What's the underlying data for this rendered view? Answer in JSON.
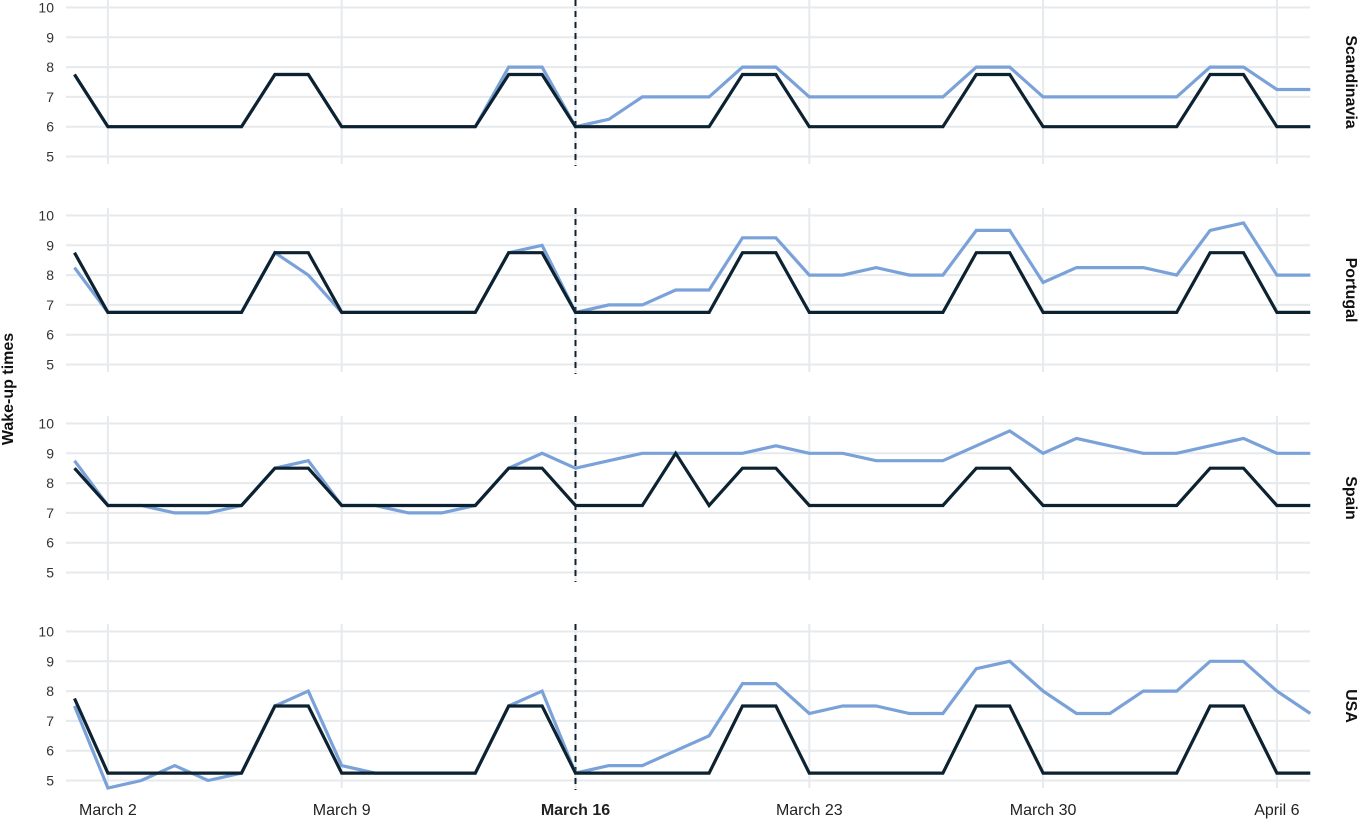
{
  "chart_data": {
    "type": "line",
    "ylabel": "Wake-up times",
    "x_ticks": [
      {
        "label": "March 2",
        "day": 2,
        "bold": false
      },
      {
        "label": "March 9",
        "day": 9,
        "bold": false
      },
      {
        "label": "March 16",
        "day": 16,
        "bold": true
      },
      {
        "label": "March 23",
        "day": 23,
        "bold": false
      },
      {
        "label": "March 30",
        "day": 30,
        "bold": false
      },
      {
        "label": "April 6",
        "day": 37,
        "bold": false
      }
    ],
    "reference_date": "March 16",
    "yticks": [
      5,
      6,
      7,
      8,
      9,
      10
    ],
    "ylim": [
      4.75,
      10.25
    ],
    "x_start_day": 1,
    "x_end_day": 38,
    "series_colors": {
      "light": "#7aa2d9",
      "dark": "#0d2231"
    },
    "grid": true,
    "panels": [
      {
        "name": "Scandinavia",
        "light": [
          7.75,
          6,
          6,
          6,
          6,
          6,
          7.75,
          7.75,
          6,
          6,
          6,
          6,
          6,
          8,
          8,
          6,
          6.25,
          7,
          7,
          7,
          8,
          8,
          7,
          7,
          7,
          7,
          7,
          8,
          8,
          7,
          7,
          7,
          7,
          7,
          8,
          8,
          7.25,
          7.25
        ],
        "dark": [
          7.75,
          6,
          6,
          6,
          6,
          6,
          7.75,
          7.75,
          6,
          6,
          6,
          6,
          6,
          7.75,
          7.75,
          6,
          6,
          6,
          6,
          6,
          7.75,
          7.75,
          6,
          6,
          6,
          6,
          6,
          7.75,
          7.75,
          6,
          6,
          6,
          6,
          6,
          7.75,
          7.75,
          6,
          6
        ]
      },
      {
        "name": "Portugal",
        "light": [
          8.25,
          6.75,
          6.75,
          6.75,
          6.75,
          6.75,
          8.75,
          8,
          6.75,
          6.75,
          6.75,
          6.75,
          6.75,
          8.75,
          9,
          6.75,
          7,
          7,
          7.5,
          7.5,
          9.25,
          9.25,
          8,
          8,
          8.25,
          8,
          8,
          9.5,
          9.5,
          7.75,
          8.25,
          8.25,
          8.25,
          8,
          9.5,
          9.75,
          8,
          8
        ],
        "dark": [
          8.75,
          6.75,
          6.75,
          6.75,
          6.75,
          6.75,
          8.75,
          8.75,
          6.75,
          6.75,
          6.75,
          6.75,
          6.75,
          8.75,
          8.75,
          6.75,
          6.75,
          6.75,
          6.75,
          6.75,
          8.75,
          8.75,
          6.75,
          6.75,
          6.75,
          6.75,
          6.75,
          8.75,
          8.75,
          6.75,
          6.75,
          6.75,
          6.75,
          6.75,
          8.75,
          8.75,
          6.75,
          6.75
        ]
      },
      {
        "name": "Spain",
        "light": [
          8.75,
          7.25,
          7.25,
          7,
          7,
          7.25,
          8.5,
          8.75,
          7.25,
          7.25,
          7,
          7,
          7.25,
          8.5,
          9,
          8.5,
          8.75,
          9,
          9,
          9,
          9,
          9.25,
          9,
          9,
          8.75,
          8.75,
          8.75,
          9.25,
          9.75,
          9,
          9.5,
          9.25,
          9,
          9,
          9.25,
          9.5,
          9,
          9
        ],
        "dark": [
          8.5,
          7.25,
          7.25,
          7.25,
          7.25,
          7.25,
          8.5,
          8.5,
          7.25,
          7.25,
          7.25,
          7.25,
          7.25,
          8.5,
          8.5,
          7.25,
          7.25,
          7.25,
          9,
          7.25,
          8.5,
          8.5,
          7.25,
          7.25,
          7.25,
          7.25,
          7.25,
          8.5,
          8.5,
          7.25,
          7.25,
          7.25,
          7.25,
          7.25,
          8.5,
          8.5,
          7.25,
          7.25
        ]
      },
      {
        "name": "USA",
        "light": [
          7.5,
          4.75,
          5,
          5.5,
          5,
          5.25,
          7.5,
          8,
          5.5,
          5.25,
          5.25,
          5.25,
          5.25,
          7.5,
          8,
          5.25,
          5.5,
          5.5,
          6,
          6.5,
          8.25,
          8.25,
          7.25,
          7.5,
          7.5,
          7.25,
          7.25,
          8.75,
          9,
          8,
          7.25,
          7.25,
          8,
          8,
          9,
          9,
          8,
          7.25
        ],
        "dark": [
          7.75,
          5.25,
          5.25,
          5.25,
          5.25,
          5.25,
          7.5,
          7.5,
          5.25,
          5.25,
          5.25,
          5.25,
          5.25,
          7.5,
          7.5,
          5.25,
          5.25,
          5.25,
          5.25,
          5.25,
          7.5,
          7.5,
          5.25,
          5.25,
          5.25,
          5.25,
          5.25,
          7.5,
          7.5,
          5.25,
          5.25,
          5.25,
          5.25,
          5.25,
          7.5,
          7.5,
          5.25,
          5.25
        ]
      }
    ]
  }
}
